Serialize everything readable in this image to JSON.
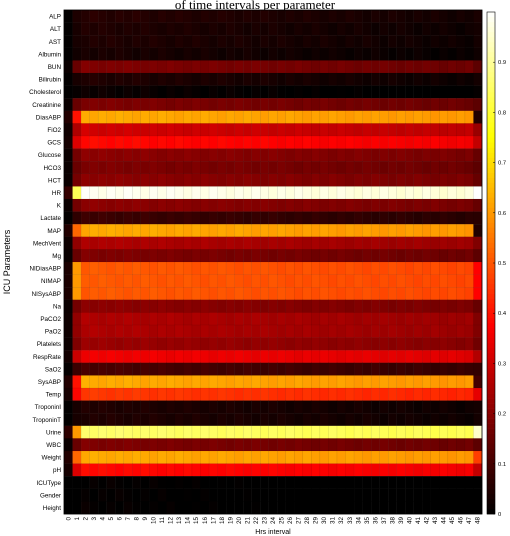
{
  "page": {
    "caption_fragment": "of time intervals per parameter"
  },
  "chart_data": {
    "type": "heatmap",
    "title": "",
    "xlabel": "Hrs interval",
    "ylabel": "ICU Parameters",
    "x_categories": [
      "0",
      "1",
      "2",
      "3",
      "4",
      "5",
      "6",
      "7",
      "8",
      "9",
      "10",
      "11",
      "12",
      "13",
      "14",
      "15",
      "16",
      "17",
      "18",
      "19",
      "20",
      "21",
      "22",
      "23",
      "24",
      "25",
      "26",
      "27",
      "28",
      "29",
      "30",
      "31",
      "32",
      "33",
      "34",
      "35",
      "36",
      "37",
      "38",
      "39",
      "40",
      "41",
      "42",
      "43",
      "44",
      "45",
      "46",
      "47",
      "48"
    ],
    "y_categories": [
      "ALP",
      "ALT",
      "AST",
      "Albumin",
      "BUN",
      "Bilirubin",
      "Cholesterol",
      "Creatinine",
      "DiasABP",
      "FiO2",
      "GCS",
      "Glucose",
      "HCO3",
      "HCT",
      "HR",
      "K",
      "Lactate",
      "MAP",
      "MechVent",
      "Mg",
      "NIDiasABP",
      "NIMAP",
      "NISysABP",
      "Na",
      "PaCO2",
      "PaO2",
      "Platelets",
      "RespRate",
      "SaO2",
      "SysABP",
      "Temp",
      "TroponinI",
      "TroponinT",
      "Urine",
      "WBC",
      "Weight",
      "pH",
      "ICUType",
      "Gender",
      "Height"
    ],
    "row_levels": [
      0.05,
      0.04,
      0.04,
      0.03,
      0.18,
      0.04,
      0.01,
      0.18,
      0.62,
      0.3,
      0.38,
      0.2,
      0.18,
      0.2,
      0.98,
      0.2,
      0.08,
      0.62,
      0.25,
      0.18,
      0.5,
      0.5,
      0.5,
      0.2,
      0.25,
      0.25,
      0.22,
      0.35,
      0.1,
      0.62,
      0.45,
      0.04,
      0.04,
      0.85,
      0.18,
      0.62,
      0.38,
      0.0,
      0.0,
      0.0
    ],
    "note": "row_levels gives the approximate typical colour-scale value of each parameter row across intervals 1-47; column 0 is near 0 and edge columns deviate slightly",
    "special_cells": [
      {
        "row": "DiasABP",
        "col": "48",
        "value": 0.05
      },
      {
        "row": "MAP",
        "col": "48",
        "value": 0.05
      },
      {
        "row": "SysABP",
        "col": "48",
        "value": 0.1
      },
      {
        "row": "Urine",
        "col": "48",
        "value": 0.95
      },
      {
        "row": "HR",
        "col": "48",
        "value": 1.0
      },
      {
        "row": "DiasABP",
        "col": "1",
        "value": 0.4
      },
      {
        "row": "SysABP",
        "col": "1",
        "value": 0.4
      },
      {
        "row": "Urine",
        "col": "1",
        "value": 0.6
      },
      {
        "row": "NIDiasABP",
        "col": "1",
        "value": 0.6
      },
      {
        "row": "NIMAP",
        "col": "1",
        "value": 0.6
      },
      {
        "row": "NISysABP",
        "col": "1",
        "value": 0.6
      }
    ],
    "colorbar": {
      "min": 0,
      "max": 1,
      "ticks": [
        0,
        0.1,
        0.2,
        0.3,
        0.4,
        0.5,
        0.6,
        0.7,
        0.8,
        0.9
      ],
      "colormap": "hot"
    }
  }
}
